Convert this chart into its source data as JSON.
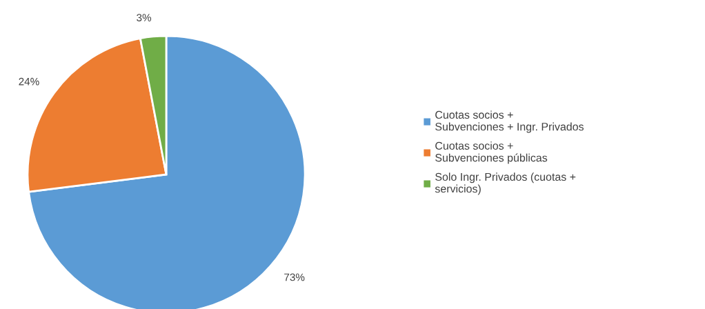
{
  "chart_data": {
    "type": "pie",
    "categories": [
      "Cuotas socios +\nSubvenciones + Ingr. Privados",
      "Cuotas socios +\nSubvenciones públicas",
      "Solo Ingr. Privados (cuotas +\nservicios)"
    ],
    "values": [
      73,
      24,
      3
    ],
    "colors": [
      "#5b9bd5",
      "#ed7d31",
      "#70ad47"
    ],
    "value_labels": [
      "73%",
      "24%",
      "3%"
    ],
    "legend": "right"
  }
}
